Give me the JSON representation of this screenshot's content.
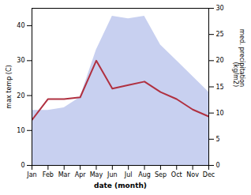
{
  "chart_data": {
    "type": "line",
    "categories": [
      "Jan",
      "Feb",
      "Mar",
      "Apr",
      "May",
      "Jun",
      "Jul",
      "Aug",
      "Sep",
      "Oct",
      "Nov",
      "Dec"
    ],
    "series": [
      {
        "type": "area",
        "axis": "y2",
        "color": "#c8d0f0",
        "values": [
          10.5,
          10.5,
          11.0,
          13.0,
          22.0,
          28.5,
          28.0,
          28.5,
          23.0,
          20.0,
          17.0,
          14.0
        ]
      },
      {
        "type": "line",
        "color": "#b03040",
        "values": [
          13.0,
          19.0,
          19.0,
          19.5,
          30.0,
          22.0,
          23.0,
          24.0,
          21.0,
          19.0,
          16.0,
          14.0
        ]
      }
    ],
    "xlabel": "date (month)",
    "ylabel": "max temp (C)",
    "y2label": "med. precipitation\n(kg/m2)",
    "ylim": [
      0,
      45
    ],
    "yticks": [
      0,
      10,
      20,
      30,
      40
    ],
    "y2lim": [
      0,
      30
    ],
    "y2ticks": [
      0,
      5,
      10,
      15,
      20,
      25,
      30
    ],
    "grid": false
  }
}
